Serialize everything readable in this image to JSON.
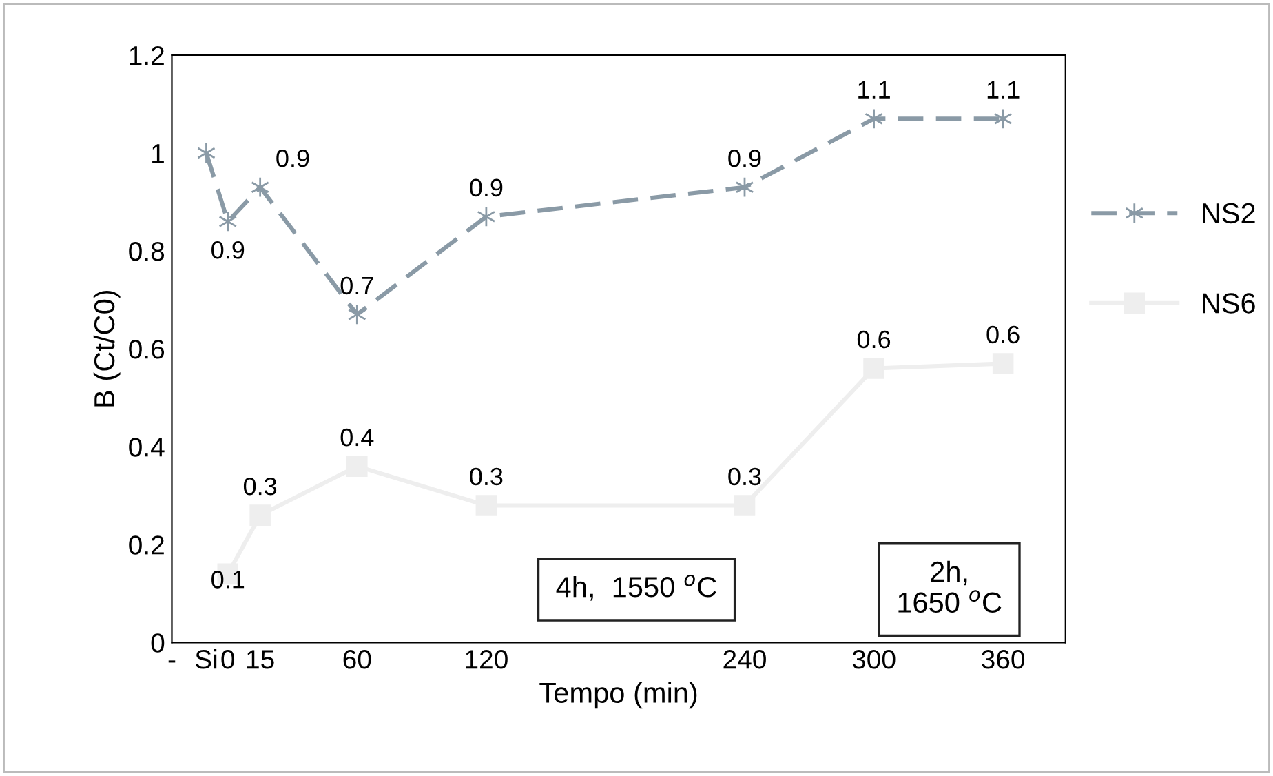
{
  "chart_data": {
    "type": "line",
    "xlabel": "Tempo (min)",
    "ylabel": "B (Ct/C0)",
    "xlim": [
      -26,
      389
    ],
    "xticks": [
      {
        "value": -26,
        "label": "-"
      },
      {
        "value": -10,
        "label": "Si"
      },
      0,
      15,
      60,
      120,
      240,
      300,
      360
    ],
    "ylim": [
      0,
      1.2
    ],
    "yticks": [
      0,
      0.2,
      0.4,
      0.6,
      0.8,
      1,
      1.2
    ],
    "series": [
      {
        "name": "NS2",
        "color": "#8a9aa6",
        "line_style": "dashed",
        "marker": "cross",
        "x": [
          -10,
          0,
          15,
          60,
          120,
          240,
          300,
          360
        ],
        "values": [
          1.0,
          0.86,
          0.93,
          0.67,
          0.87,
          0.93,
          1.07,
          1.07
        ],
        "value_labels": [
          null,
          "0.9",
          "0.9",
          "0.7",
          "0.9",
          "0.9",
          "1.1",
          "1.1"
        ]
      },
      {
        "name": "NS6",
        "color": "#eeeeee",
        "line_style": "solid",
        "marker": "square",
        "x": [
          0,
          15,
          60,
          120,
          240,
          300,
          360
        ],
        "values": [
          0.14,
          0.26,
          0.36,
          0.28,
          0.28,
          0.56,
          0.57
        ],
        "value_labels": [
          "0.1",
          "0.3",
          "0.4",
          "0.3",
          "0.3",
          "0.6",
          "0.6"
        ]
      }
    ],
    "annotations": [
      "4h,  1550 $^{o}$C",
      "2h,\n1650 $^{o}$C"
    ],
    "legend": "right",
    "grid": false
  }
}
